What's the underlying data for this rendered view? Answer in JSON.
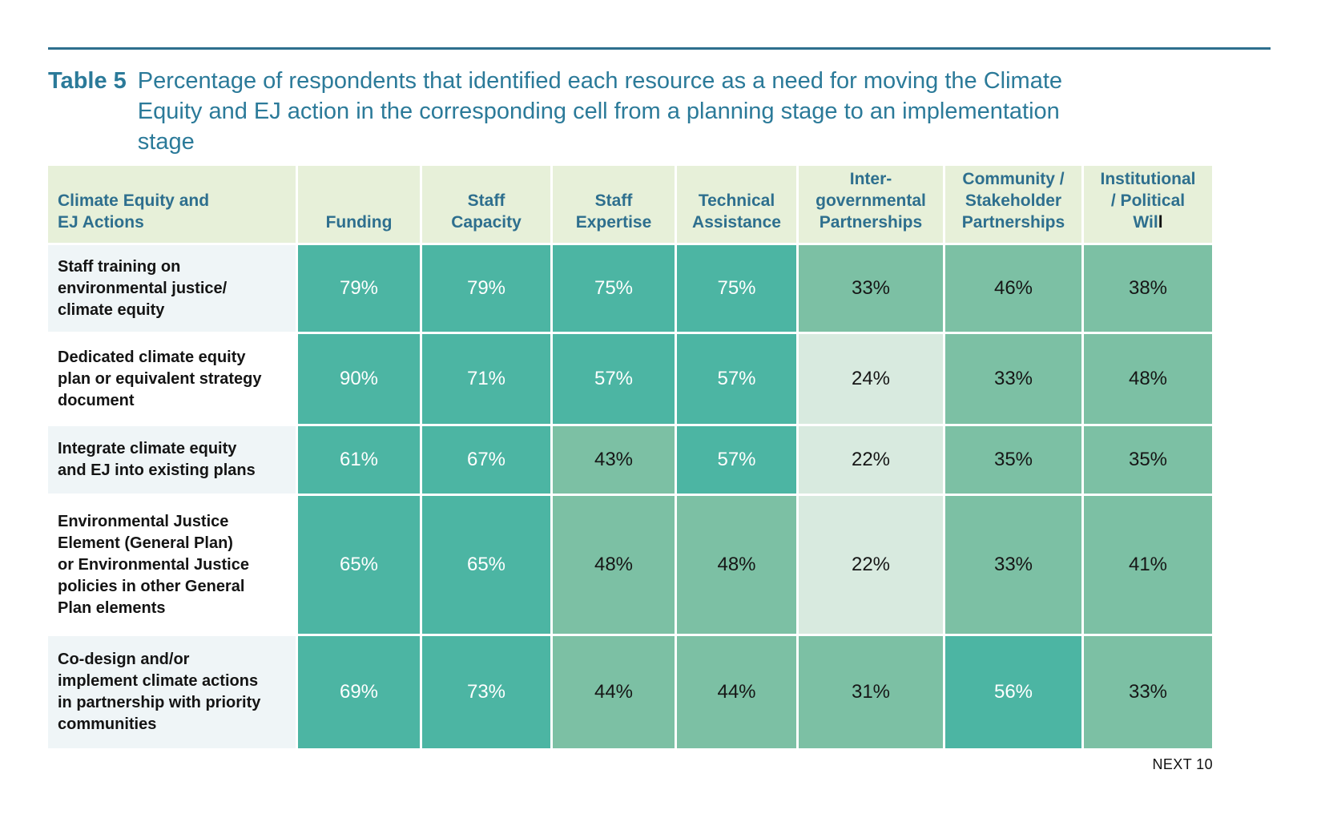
{
  "title": {
    "prefix": "Table 5",
    "text": "Percentage of respondents that identified each resource as a need for moving the Climate Equity and EJ action in the corresponding cell from a planning stage to an implementation stage"
  },
  "table": {
    "corner_header": "Climate Equity and\nEJ Actions",
    "column_headers": [
      "Funding",
      "Staff\nCapacity",
      "Staff\nExpertise",
      "Technical\nAssistance",
      "Inter-\ngovernmental\nPartnerships",
      "Community /\nStakeholder\nPartnerships",
      "Institutional\n/ Political\nWill"
    ],
    "last_header_caret": true,
    "rows": [
      {
        "label": "Staff training on\nenvironmental justice/\nclimate equity",
        "values": [
          79,
          79,
          75,
          75,
          33,
          46,
          38
        ]
      },
      {
        "label": "Dedicated climate equity\nplan or equivalent strategy\ndocument",
        "values": [
          90,
          71,
          57,
          57,
          24,
          33,
          48
        ]
      },
      {
        "label": "Integrate climate equity\nand EJ into existing plans",
        "values": [
          61,
          67,
          43,
          57,
          22,
          35,
          35
        ]
      },
      {
        "label": "Environmental Justice\nElement (General Plan)\nor Environmental Justice\npolicies in other General\nPlan elements",
        "values": [
          65,
          65,
          48,
          48,
          22,
          33,
          41
        ]
      },
      {
        "label": "Co-design and/or\nimplement climate actions\nin partnership with priority\ncommunities",
        "values": [
          69,
          73,
          44,
          44,
          31,
          56,
          33
        ]
      }
    ],
    "unit": "%",
    "tier_thresholds": {
      "high_min": 50,
      "mid_min": 25
    },
    "colors": {
      "high": "#4CB5A3",
      "mid": "#7CC0A4",
      "low": "#D8EADF",
      "header_bg": "#E7F0D9",
      "header_text": "#2E6F8E",
      "label_alt_bg": "#EFF5F7",
      "high_value_text": "#FFFFFF",
      "value_text": "#161616",
      "rule": "#2E6F8E",
      "title_text": "#2B7A99"
    }
  },
  "chart_data": {
    "type": "heatmap",
    "title": "Table 5: Percentage of respondents that identified each resource as a need for moving the Climate Equity and EJ action in the corresponding cell from a planning stage to an implementation stage",
    "unit": "%",
    "columns": [
      "Funding",
      "Staff Capacity",
      "Staff Expertise",
      "Technical Assistance",
      "Inter-governmental Partnerships",
      "Community / Stakeholder Partnerships",
      "Institutional / Political Will"
    ],
    "rows": [
      "Staff training on environmental justice/ climate equity",
      "Dedicated climate equity plan or equivalent strategy document",
      "Integrate climate equity and EJ into existing plans",
      "Environmental Justice Element (General Plan) or Environmental Justice policies in other General Plan elements",
      "Co-design and/or implement climate actions in partnership with priority communities"
    ],
    "values": [
      [
        79,
        79,
        75,
        75,
        33,
        46,
        38
      ],
      [
        90,
        71,
        57,
        57,
        24,
        33,
        48
      ],
      [
        61,
        67,
        43,
        57,
        22,
        35,
        35
      ],
      [
        65,
        65,
        48,
        48,
        22,
        33,
        41
      ],
      [
        69,
        73,
        44,
        44,
        31,
        56,
        33
      ]
    ],
    "color_scale": [
      {
        "min": 50,
        "color": "#4CB5A3",
        "text": "#FFFFFF"
      },
      {
        "min": 25,
        "color": "#7CC0A4",
        "text": "#161616"
      },
      {
        "min": 0,
        "color": "#D8EADF",
        "text": "#161616"
      }
    ]
  },
  "footer": {
    "brand": "NEXT 10",
    "page_artifact": "0"
  }
}
